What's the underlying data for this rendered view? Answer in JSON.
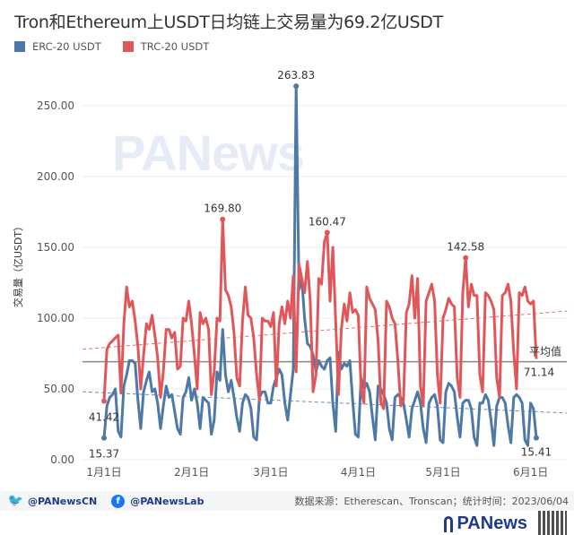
{
  "title": "Tron和Ethereum上USDT日均链上交易量为69.2亿USDT",
  "footer": {
    "twitter": "@PANewsCN",
    "facebook": "@PANewsLab",
    "source": "数据来源：Etherescan、Tronscan；统计时间：2023/06/04",
    "brand": "PANews",
    "watermark": "PANews"
  },
  "colors": {
    "erc": "#4e79a7",
    "trc": "#e15759",
    "avg": "#888888"
  },
  "chart_data": {
    "type": "line",
    "title": "Tron和Ethereum上USDT日均链上交易量为69.2亿USDT",
    "xlabel": "",
    "ylabel": "交易量（亿USDT）",
    "ylim": [
      0,
      260
    ],
    "yticks": [
      "0.00",
      "50.00",
      "100.00",
      "150.00",
      "200.00",
      "250.00"
    ],
    "ytick_values": [
      0,
      50,
      100,
      150,
      200,
      250
    ],
    "xticks": [
      "1月1日",
      "2月1日",
      "3月1日",
      "4月1日",
      "5月1日",
      "6月1日"
    ],
    "xtick_days": [
      0,
      31,
      59,
      90,
      120,
      151
    ],
    "x_start": "2023-01-01",
    "legend": "top-left",
    "grid": true,
    "average": {
      "label": "平均值",
      "value": 69.2,
      "end_label": "71.14"
    },
    "series": [
      {
        "name": "ERC-20 USDT",
        "color": "#4e79a7",
        "trend": [
          48,
          33
        ],
        "annotations": [
          {
            "index": 0,
            "label": "15.37"
          },
          {
            "index": 68,
            "label": "263.83"
          },
          {
            "index": 153,
            "label": "15.41"
          }
        ],
        "values": [
          15.37,
          38,
          44,
          46,
          50,
          20,
          16,
          52,
          60,
          70,
          70,
          68,
          42,
          22,
          48,
          56,
          62,
          48,
          50,
          40,
          22,
          38,
          52,
          44,
          46,
          34,
          22,
          18,
          44,
          48,
          58,
          42,
          50,
          40,
          22,
          44,
          42,
          40,
          18,
          28,
          62,
          56,
          92,
          60,
          48,
          56,
          44,
          30,
          20,
          40,
          46,
          44,
          36,
          16,
          14,
          44,
          48,
          48,
          40,
          40,
          52,
          58,
          64,
          60,
          40,
          28,
          46,
          64,
          263.83,
          120,
          128,
          100,
          82,
          80,
          74,
          62,
          70,
          66,
          64,
          70,
          72,
          40,
          20,
          76,
          64,
          68,
          66,
          70,
          42,
          18,
          16,
          58,
          50,
          54,
          48,
          30,
          14,
          52,
          50,
          46,
          40,
          22,
          14,
          44,
          46,
          44,
          40,
          28,
          16,
          36,
          42,
          48,
          40,
          22,
          12,
          40,
          44,
          46,
          38,
          14,
          12,
          48,
          54,
          52,
          48,
          30,
          16,
          40,
          42,
          42,
          36,
          16,
          10,
          40,
          40,
          46,
          42,
          28,
          10,
          38,
          44,
          44,
          40,
          24,
          12,
          44,
          46,
          44,
          40,
          14,
          10,
          40,
          36,
          15.41
        ]
      },
      {
        "name": "TRC-20 USDT",
        "color": "#e15759",
        "trend": [
          78,
          105
        ],
        "annotations": [
          {
            "index": 0,
            "label": "41.42"
          },
          {
            "index": 42,
            "label": "169.80"
          },
          {
            "index": 79,
            "label": "160.47"
          },
          {
            "index": 128,
            "label": "142.58"
          }
        ],
        "values": [
          41.42,
          78,
          82,
          84,
          86,
          88,
          47,
          96,
          122,
          108,
          112,
          98,
          80,
          50,
          74,
          96,
          92,
          102,
          88,
          72,
          44,
          62,
          92,
          92,
          86,
          90,
          64,
          66,
          100,
          98,
          112,
          96,
          74,
          50,
          104,
          96,
          100,
          92,
          46,
          62,
          100,
          98,
          169.8,
          120,
          116,
          108,
          90,
          58,
          52,
          98,
          122,
          102,
          100,
          86,
          60,
          42,
          100,
          98,
          98,
          94,
          104,
          52,
          96,
          108,
          96,
          112,
          100,
          130,
          62,
          138,
          128,
          118,
          140,
          112,
          48,
          60,
          128,
          124,
          154,
          160.47,
          112,
          150,
          98,
          46,
          92,
          110,
          98,
          118,
          104,
          106,
          102,
          50,
          40,
          122,
          114,
          110,
          106,
          84,
          40,
          36,
          112,
          108,
          100,
          96,
          70,
          38,
          42,
          104,
          110,
          130,
          100,
          128,
          52,
          38,
          112,
          118,
          124,
          112,
          60,
          40,
          100,
          106,
          114,
          110,
          108,
          58,
          44,
          118,
          142.58,
          108,
          124,
          116,
          116,
          60,
          48,
          118,
          116,
          112,
          106,
          58,
          44,
          116,
          118,
          124,
          112,
          76,
          50,
          118,
          116,
          122,
          112,
          110,
          112,
          71.14
        ]
      }
    ]
  }
}
